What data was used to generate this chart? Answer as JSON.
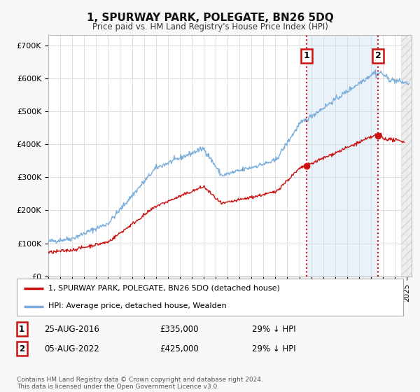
{
  "title": "1, SPURWAY PARK, POLEGATE, BN26 5DQ",
  "subtitle": "Price paid vs. HM Land Registry's House Price Index (HPI)",
  "ylabel_ticks": [
    "£0",
    "£100K",
    "£200K",
    "£300K",
    "£400K",
    "£500K",
    "£600K",
    "£700K"
  ],
  "ytick_values": [
    0,
    100000,
    200000,
    300000,
    400000,
    500000,
    600000,
    700000
  ],
  "ylim": [
    0,
    730000
  ],
  "xlim_start": 1995.0,
  "xlim_end": 2025.4,
  "hpi_color": "#7aaddc",
  "hpi_fill_color": "#c8dff2",
  "sale_color": "#cc1111",
  "sale1_x": 2016.63,
  "sale1_y": 335000,
  "sale2_x": 2022.59,
  "sale2_y": 425000,
  "legend_line1": "1, SPURWAY PARK, POLEGATE, BN26 5DQ (detached house)",
  "legend_line2": "HPI: Average price, detached house, Wealden",
  "table_row1": [
    "1",
    "25-AUG-2016",
    "£335,000",
    "29% ↓ HPI"
  ],
  "table_row2": [
    "2",
    "05-AUG-2022",
    "£425,000",
    "29% ↓ HPI"
  ],
  "footer": "Contains HM Land Registry data © Crown copyright and database right 2024.\nThis data is licensed under the Open Government Licence v3.0.",
  "bg_color": "#f8f8f8",
  "plot_bg": "#ffffff",
  "grid_color": "#dddddd",
  "hatch_color": "#cccccc"
}
